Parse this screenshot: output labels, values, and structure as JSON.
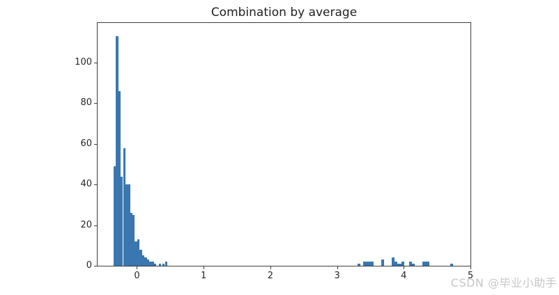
{
  "chart_data": {
    "type": "histogram",
    "title": "Combination by average",
    "xlabel": "",
    "ylabel": "",
    "xlim": [
      -0.59,
      5.0
    ],
    "ylim": [
      0,
      119.5
    ],
    "grid": false,
    "legend": null,
    "x_ticks": [
      0,
      1,
      2,
      3,
      4,
      5
    ],
    "y_ticks": [
      0,
      20,
      40,
      60,
      80,
      100
    ],
    "bars": [
      {
        "x": -0.34,
        "w": 0.0355,
        "h": 49
      },
      {
        "x": -0.305,
        "w": 0.0355,
        "h": 113
      },
      {
        "x": -0.269,
        "w": 0.0355,
        "h": 86
      },
      {
        "x": -0.234,
        "w": 0.0355,
        "h": 44
      },
      {
        "x": -0.198,
        "w": 0.0355,
        "h": 58
      },
      {
        "x": -0.163,
        "w": 0.0355,
        "h": 40
      },
      {
        "x": -0.127,
        "w": 0.0355,
        "h": 40
      },
      {
        "x": -0.092,
        "w": 0.0355,
        "h": 26
      },
      {
        "x": -0.056,
        "w": 0.0355,
        "h": 25
      },
      {
        "x": -0.021,
        "w": 0.0355,
        "h": 12
      },
      {
        "x": 0.015,
        "w": 0.0355,
        "h": 13
      },
      {
        "x": 0.051,
        "w": 0.0355,
        "h": 8
      },
      {
        "x": 0.086,
        "w": 0.0355,
        "h": 5
      },
      {
        "x": 0.122,
        "w": 0.0355,
        "h": 4
      },
      {
        "x": 0.157,
        "w": 0.0355,
        "h": 3
      },
      {
        "x": 0.193,
        "w": 0.0355,
        "h": 2
      },
      {
        "x": 0.228,
        "w": 0.0355,
        "h": 2
      },
      {
        "x": 0.264,
        "w": 0.0355,
        "h": 1
      },
      {
        "x": 0.335,
        "w": 0.0355,
        "h": 1
      },
      {
        "x": 0.389,
        "w": 0.0355,
        "h": 1
      },
      {
        "x": 0.432,
        "w": 0.0355,
        "h": 2
      },
      {
        "x": 3.313,
        "w": 0.042,
        "h": 1
      },
      {
        "x": 3.402,
        "w": 0.157,
        "h": 2
      },
      {
        "x": 3.672,
        "w": 0.047,
        "h": 3
      },
      {
        "x": 3.829,
        "w": 0.047,
        "h": 4
      },
      {
        "x": 3.876,
        "w": 0.037,
        "h": 2
      },
      {
        "x": 3.913,
        "w": 0.063,
        "h": 1
      },
      {
        "x": 3.976,
        "w": 0.037,
        "h": 2
      },
      {
        "x": 4.088,
        "w": 0.048,
        "h": 2
      },
      {
        "x": 4.136,
        "w": 0.036,
        "h": 1
      },
      {
        "x": 4.287,
        "w": 0.104,
        "h": 2
      },
      {
        "x": 4.708,
        "w": 0.042,
        "h": 1
      }
    ],
    "colors": {
      "bar": "#3a76af",
      "spine": "#3c3c3c",
      "text": "#262626",
      "background": "#ffffff"
    }
  },
  "watermark": {
    "text": "CSDN @毕业小助手",
    "color": "#c6c6c6"
  }
}
